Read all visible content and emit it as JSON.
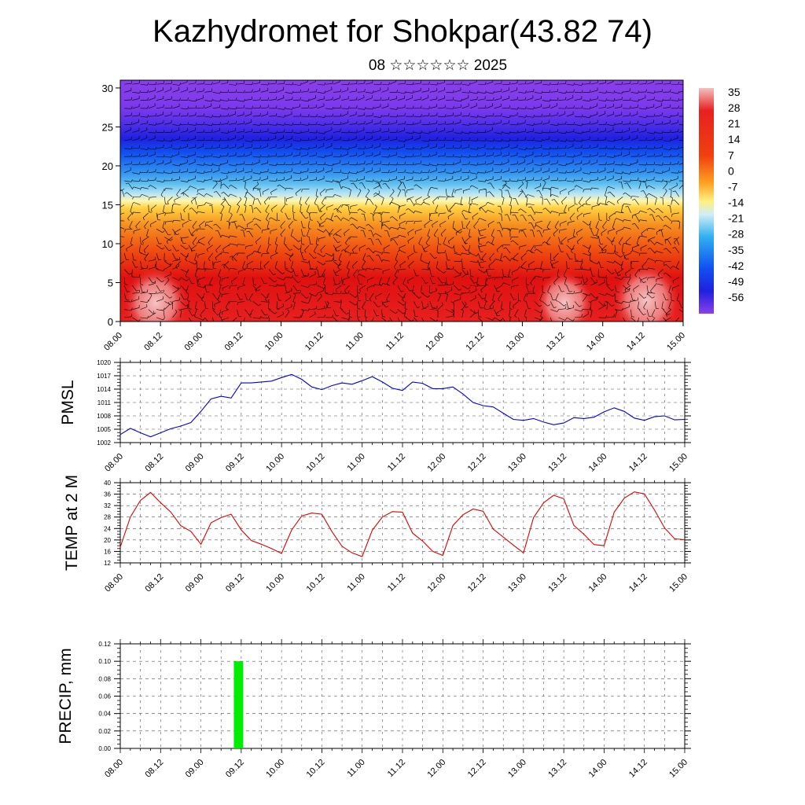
{
  "header": {
    "title": "Kazhydromet for Shokpar(43.82 74)",
    "subtitle": "08 ☆☆☆☆☆☆ 2025"
  },
  "time_labels": [
    "08.00",
    "08.12",
    "09.00",
    "09.12",
    "10.00",
    "10.12",
    "11.00",
    "11.12",
    "12.00",
    "12.12",
    "13.00",
    "13.12",
    "14.00",
    "14.12",
    "15.00"
  ],
  "chart_data": [
    {
      "type": "heatmap",
      "name": "temperature-cross-section",
      "ylim": [
        0,
        31
      ],
      "y_ticks": [
        0,
        5,
        10,
        15,
        20,
        25,
        30
      ],
      "colorbar_labels": [
        35,
        28,
        21,
        14,
        7,
        0,
        -7,
        -14,
        -21,
        -28,
        -35,
        -42,
        -49,
        -56
      ],
      "colors": {
        "hot": "#f4b4b4",
        "red": "#e01010",
        "orange": "#f08020",
        "yellow": "#fff0a0",
        "lightblue": "#a0d8f0",
        "blue": "#1060f0",
        "darkblue": "#2020e0",
        "purple": "#8040e8"
      },
      "wind_barbs": true
    },
    {
      "type": "line",
      "ylabel": "PMSL",
      "ylim": [
        1002,
        1020
      ],
      "y_ticks": [
        1002,
        1005,
        1008,
        1011,
        1014,
        1017,
        1020
      ],
      "color": "#0000e0",
      "x_hours": [
        0,
        3,
        6,
        9,
        12,
        15,
        18,
        21,
        24,
        27,
        30,
        33,
        36,
        39,
        42,
        45,
        48,
        51,
        54,
        57,
        60,
        63,
        66,
        69,
        72,
        75,
        78,
        81,
        84,
        87,
        90,
        93,
        96,
        99,
        102,
        105,
        108,
        111,
        114,
        117,
        120,
        123,
        126,
        129,
        132,
        135,
        138,
        141,
        144,
        147,
        150,
        153,
        156,
        159,
        162,
        165,
        168
      ],
      "values": [
        1003.8,
        1005.2,
        1004.2,
        1003.3,
        1004.2,
        1005.1,
        1005.7,
        1006.5,
        1009.0,
        1011.8,
        1012.4,
        1012.0,
        1015.4,
        1015.4,
        1015.6,
        1015.8,
        1016.6,
        1017.3,
        1016.2,
        1014.5,
        1013.9,
        1014.8,
        1015.4,
        1015.1,
        1015.9,
        1016.8,
        1015.6,
        1014.2,
        1013.7,
        1015.6,
        1015.3,
        1014.1,
        1014.1,
        1014.5,
        1012.9,
        1011.0,
        1010.3,
        1010.0,
        1008.6,
        1007.2,
        1007.0,
        1007.4,
        1006.6,
        1006.0,
        1006.4,
        1007.6,
        1007.4,
        1007.7,
        1008.9,
        1009.8,
        1009.0,
        1007.5,
        1007.0,
        1007.8,
        1008.0,
        1007.1,
        1007.2
      ]
    },
    {
      "type": "line",
      "ylabel": "TEMP at 2 M",
      "ylim": [
        12,
        40
      ],
      "y_ticks": [
        12,
        16,
        20,
        24,
        28,
        32,
        36,
        40
      ],
      "color": "#e00000",
      "x_hours": [
        0,
        3,
        6,
        9,
        12,
        15,
        18,
        21,
        24,
        27,
        30,
        33,
        36,
        39,
        42,
        45,
        48,
        51,
        54,
        57,
        60,
        63,
        66,
        69,
        72,
        75,
        78,
        81,
        84,
        87,
        90,
        93,
        96,
        99,
        102,
        105,
        108,
        111,
        114,
        117,
        120,
        123,
        126,
        129,
        132,
        135,
        138,
        141,
        144,
        147,
        150,
        153,
        156,
        159,
        162,
        165,
        168
      ],
      "values": [
        17.5,
        28.0,
        33.8,
        36.6,
        33.0,
        29.8,
        25.0,
        23.0,
        18.5,
        26.0,
        27.8,
        29.0,
        23.5,
        19.8,
        18.5,
        17.0,
        15.3,
        23.5,
        28.4,
        29.4,
        29.0,
        22.9,
        17.8,
        15.5,
        14.2,
        23.4,
        28.0,
        29.9,
        29.7,
        22.4,
        19.6,
        16.0,
        14.6,
        25.0,
        28.8,
        30.8,
        30.0,
        23.8,
        21.0,
        18.2,
        15.5,
        27.8,
        33.0,
        35.6,
        34.4,
        25.1,
        22.0,
        18.4,
        18.0,
        29.7,
        34.6,
        36.8,
        36.1,
        30.5,
        24.2,
        20.4,
        20.1
      ]
    },
    {
      "type": "bar",
      "ylabel": "PRECIP, mm",
      "ylim": [
        0,
        0.12
      ],
      "y_ticks": [
        "0.00",
        "0.02",
        "0.04",
        "0.06",
        "0.08",
        "0.10",
        "0.12"
      ],
      "color": "#00ee00",
      "bars": [
        {
          "x_hours": 36,
          "value": 0.1
        }
      ]
    }
  ]
}
